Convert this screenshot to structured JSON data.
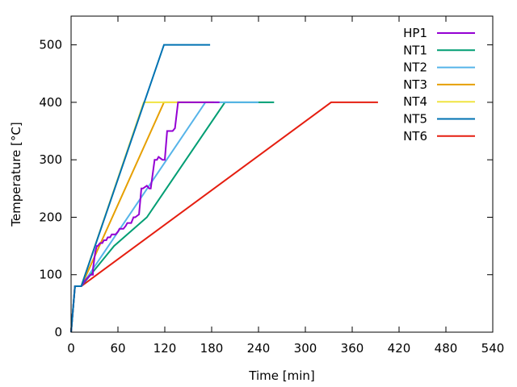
{
  "chart_data": {
    "type": "line",
    "xlabel": "Time [min]",
    "ylabel": "Temperature [°C]",
    "xlim": [
      0,
      540
    ],
    "ylim": [
      0,
      550
    ],
    "xticks": [
      0,
      60,
      120,
      180,
      240,
      300,
      360,
      420,
      480,
      540
    ],
    "yticks": [
      0,
      100,
      200,
      300,
      400,
      500
    ],
    "grid": false,
    "legend_position": "top-right",
    "series": [
      {
        "name": "HP1",
        "color": "#9400d3",
        "x": [
          0,
          5,
          13,
          18,
          25,
          28,
          28,
          31,
          33,
          34,
          37,
          40,
          42,
          45,
          47,
          50,
          52,
          57,
          60,
          62,
          67,
          70,
          72,
          77,
          80,
          82,
          87,
          90,
          92,
          97,
          100,
          102,
          107,
          110,
          112,
          117,
          120,
          123,
          127,
          130,
          133,
          137,
          140,
          142,
          190
        ],
        "y": [
          0,
          80,
          80,
          90,
          100,
          100,
          110,
          140,
          150,
          150,
          155,
          155,
          160,
          160,
          165,
          165,
          170,
          170,
          175,
          180,
          180,
          185,
          190,
          190,
          200,
          200,
          205,
          250,
          250,
          255,
          250,
          250,
          300,
          300,
          305,
          300,
          300,
          350,
          350,
          350,
          355,
          400,
          400,
          400,
          400
        ]
      },
      {
        "name": "NT1",
        "color": "#009e73",
        "x": [
          0,
          5,
          13,
          55,
          97,
          197,
          260
        ],
        "y": [
          0,
          80,
          80,
          150,
          200,
          400,
          400
        ]
      },
      {
        "name": "NT2",
        "color": "#56b4e9",
        "x": [
          0,
          5,
          13,
          172,
          240
        ],
        "y": [
          0,
          80,
          80,
          400,
          400
        ]
      },
      {
        "name": "NT3",
        "color": "#e69f00",
        "x": [
          0,
          5,
          13,
          119,
          183
        ],
        "y": [
          0,
          80,
          80,
          400,
          400
        ]
      },
      {
        "name": "NT4",
        "color": "#f0e442",
        "x": [
          0,
          5,
          13,
          93,
          153
        ],
        "y": [
          0,
          80,
          80,
          400,
          400
        ]
      },
      {
        "name": "NT5",
        "color": "#0072b2",
        "x": [
          0,
          5,
          13,
          119,
          178
        ],
        "y": [
          0,
          80,
          80,
          500,
          500
        ]
      },
      {
        "name": "NT6",
        "color": "#e51e10",
        "x": [
          0,
          5,
          13,
          333,
          393
        ],
        "y": [
          0,
          80,
          80,
          400,
          400
        ]
      }
    ]
  }
}
